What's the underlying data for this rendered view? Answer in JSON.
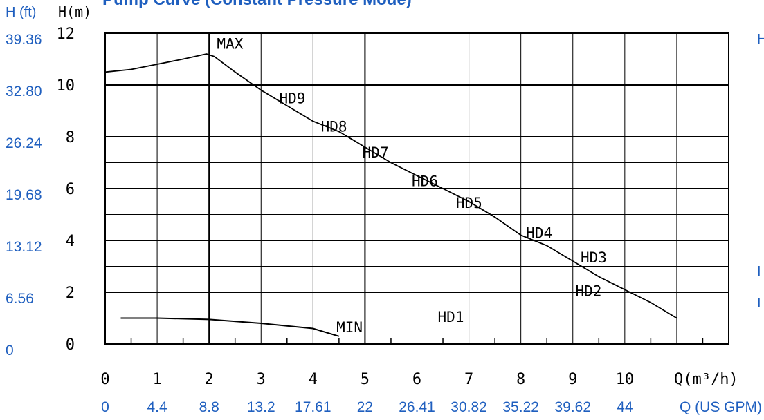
{
  "title": "Pump Curve (Constant Pressure Mode)",
  "right_edge_chars": [
    "H",
    "I",
    "I"
  ],
  "colors": {
    "blue": "#1f5fbf",
    "line": "#000000"
  },
  "chart_data": {
    "type": "line",
    "title": "Pump Curve (Constant Pressure Mode)",
    "x_axis": {
      "label": "Q(m³/h)",
      "ticks": [
        "0",
        "1",
        "2",
        "3",
        "4",
        "5",
        "6",
        "7",
        "8",
        "9",
        "10"
      ],
      "range": [
        0,
        12
      ],
      "secondary_label": "Q (US GPM)",
      "secondary_ticks": [
        "0",
        "4.4",
        "8.8",
        "13.2",
        "17.61",
        "22",
        "26.41",
        "30.82",
        "35.22",
        "39.62",
        "44"
      ]
    },
    "y_axis": {
      "label": "H(m)",
      "ticks": [
        "0",
        "2",
        "4",
        "6",
        "8",
        "10",
        "12"
      ],
      "range": [
        0,
        12
      ],
      "secondary_label": "H (ft)",
      "secondary_ticks": [
        "0",
        "6.56",
        "13.12",
        "19.68",
        "26.24",
        "32.80",
        "39.36"
      ]
    },
    "grid": true,
    "series": [
      {
        "name": "MAX",
        "x": [
          0,
          0.5,
          1,
          1.5,
          1.95,
          2.1,
          2.5,
          3,
          3.5,
          4,
          4.5,
          5,
          5.5,
          6,
          6.5,
          7,
          7.5,
          8,
          8.5,
          9,
          9.5,
          10,
          10.5,
          11
        ],
        "y": [
          10.5,
          10.6,
          10.8,
          11,
          11.2,
          11.1,
          10.5,
          9.8,
          9.2,
          8.6,
          8.2,
          7.6,
          7.0,
          6.5,
          6.0,
          5.5,
          4.9,
          4.2,
          3.8,
          3.2,
          2.6,
          2.1,
          1.6,
          1.0
        ]
      },
      {
        "name": "MIN",
        "x": [
          0.3,
          1,
          2,
          3,
          4,
          4.5
        ],
        "y": [
          1.0,
          1.0,
          0.95,
          0.8,
          0.6,
          0.3
        ]
      }
    ],
    "curve_labels": [
      {
        "text": "MAX",
        "x": 2.15,
        "y": 11.4
      },
      {
        "text": "HD9",
        "x": 3.35,
        "y": 9.3
      },
      {
        "text": "HD8",
        "x": 4.15,
        "y": 8.2
      },
      {
        "text": "HD7",
        "x": 4.95,
        "y": 7.2
      },
      {
        "text": "HD6",
        "x": 5.9,
        "y": 6.1
      },
      {
        "text": "HD5",
        "x": 6.75,
        "y": 5.25
      },
      {
        "text": "HD4",
        "x": 8.1,
        "y": 4.1
      },
      {
        "text": "HD3",
        "x": 9.15,
        "y": 3.15
      },
      {
        "text": "HD2",
        "x": 9.05,
        "y": 1.85
      },
      {
        "text": "HD1",
        "x": 6.4,
        "y": 0.85
      },
      {
        "text": "MIN",
        "x": 4.45,
        "y": 0.45
      }
    ],
    "level_lines": [
      {
        "y": 2,
        "x_end": 8.8
      },
      {
        "y": 1,
        "x_end": 6.35
      }
    ]
  }
}
